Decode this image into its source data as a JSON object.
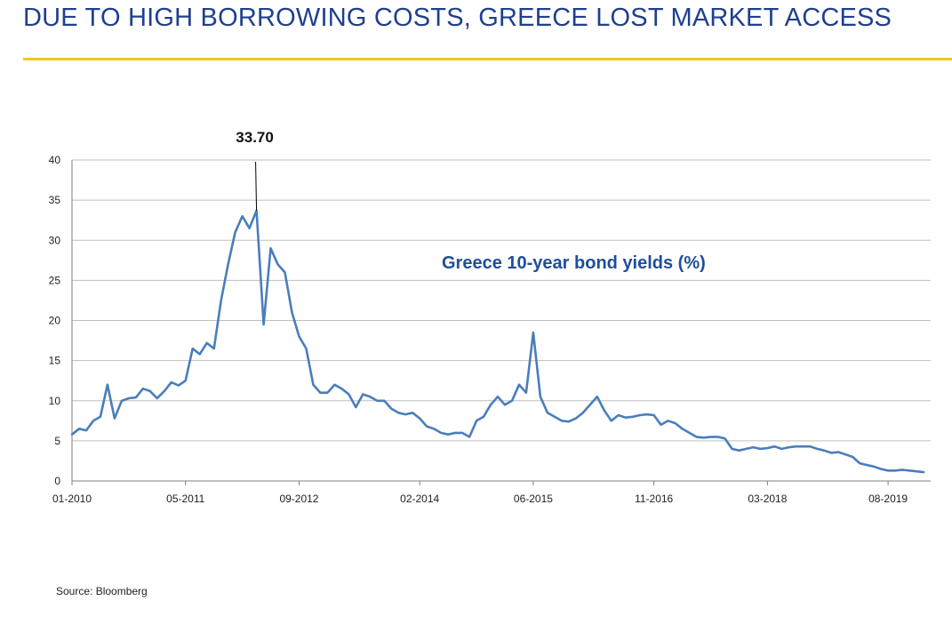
{
  "title": "DUE TO HIGH BORROWING COSTS, GREECE LOST MARKET ACCESS",
  "source": "Source: Bloomberg",
  "colors": {
    "title": "#1F3F8F",
    "rule": "#F2C81E",
    "line": "#4A7EBB",
    "label": "#1F4E9A",
    "grid": "#BFBFBF"
  },
  "chart_data": {
    "type": "line",
    "series_label": "Greece 10-year bond yields (%)",
    "annotation": {
      "text": "33.70",
      "x": "03-2012",
      "y": 33.7
    },
    "ylim": [
      0,
      40
    ],
    "y_ticks": [
      0,
      5,
      10,
      15,
      20,
      25,
      30,
      35,
      40
    ],
    "x_range": [
      "01-2010",
      "02-2020"
    ],
    "x_tick_labels": [
      "01-2010",
      "05-2011",
      "09-2012",
      "02-2014",
      "06-2015",
      "11-2016",
      "03-2018",
      "08-2019"
    ],
    "grid": "horizontal",
    "series": [
      {
        "x": [
          "2010-01",
          "2010-02",
          "2010-03",
          "2010-04",
          "2010-05",
          "2010-06",
          "2010-07",
          "2010-08",
          "2010-09",
          "2010-10",
          "2010-11",
          "2010-12",
          "2011-01",
          "2011-02",
          "2011-03",
          "2011-04",
          "2011-05",
          "2011-06",
          "2011-07",
          "2011-08",
          "2011-09",
          "2011-10",
          "2011-11",
          "2011-12",
          "2012-01",
          "2012-02",
          "2012-03",
          "2012-04",
          "2012-05",
          "2012-06",
          "2012-07",
          "2012-08",
          "2012-09",
          "2012-10",
          "2012-11",
          "2012-12",
          "2013-01",
          "2013-02",
          "2013-03",
          "2013-04",
          "2013-05",
          "2013-06",
          "2013-07",
          "2013-08",
          "2013-09",
          "2013-10",
          "2013-11",
          "2013-12",
          "2014-01",
          "2014-02",
          "2014-03",
          "2014-04",
          "2014-05",
          "2014-06",
          "2014-07",
          "2014-08",
          "2014-09",
          "2014-10",
          "2014-11",
          "2014-12",
          "2015-01",
          "2015-02",
          "2015-03",
          "2015-04",
          "2015-05",
          "2015-06",
          "2015-07",
          "2015-08",
          "2015-09",
          "2015-10",
          "2015-11",
          "2015-12",
          "2016-01",
          "2016-02",
          "2016-03",
          "2016-04",
          "2016-05",
          "2016-06",
          "2016-07",
          "2016-08",
          "2016-09",
          "2016-10",
          "2016-11",
          "2016-12",
          "2017-01",
          "2017-02",
          "2017-03",
          "2017-04",
          "2017-05",
          "2017-06",
          "2017-07",
          "2017-08",
          "2017-09",
          "2017-10",
          "2017-11",
          "2017-12",
          "2018-01",
          "2018-02",
          "2018-03",
          "2018-04",
          "2018-05",
          "2018-06",
          "2018-07",
          "2018-08",
          "2018-09",
          "2018-10",
          "2018-11",
          "2018-12",
          "2019-01",
          "2019-02",
          "2019-03",
          "2019-04",
          "2019-05",
          "2019-06",
          "2019-07",
          "2019-08",
          "2019-09",
          "2019-10",
          "2019-11",
          "2019-12",
          "2020-01"
        ],
        "values": [
          5.8,
          6.5,
          6.3,
          7.5,
          8.0,
          12.0,
          7.8,
          10.0,
          10.3,
          10.4,
          11.5,
          11.2,
          10.3,
          11.2,
          12.3,
          11.9,
          12.5,
          16.5,
          15.8,
          17.2,
          16.5,
          22.5,
          27.0,
          31.0,
          33.0,
          31.5,
          33.7,
          19.5,
          29.0,
          27.0,
          26.0,
          21.0,
          18.0,
          16.5,
          12.0,
          11.0,
          11.0,
          12.0,
          11.5,
          10.8,
          9.2,
          10.8,
          10.5,
          10.0,
          10.0,
          9.0,
          8.5,
          8.3,
          8.5,
          7.8,
          6.8,
          6.5,
          6.0,
          5.8,
          6.0,
          6.0,
          5.5,
          7.5,
          8.0,
          9.5,
          10.5,
          9.5,
          10.0,
          12.0,
          11.0,
          18.5,
          10.5,
          8.5,
          8.0,
          7.5,
          7.4,
          7.8,
          8.5,
          9.5,
          10.5,
          8.8,
          7.5,
          8.2,
          7.9,
          8.0,
          8.2,
          8.3,
          8.2,
          7.0,
          7.5,
          7.2,
          6.5,
          6.0,
          5.5,
          5.4,
          5.5,
          5.5,
          5.3,
          4.0,
          3.8,
          4.0,
          4.2,
          4.0,
          4.1,
          4.3,
          4.0,
          4.2,
          4.3,
          4.3,
          4.3,
          4.0,
          3.8,
          3.5,
          3.6,
          3.3,
          3.0,
          2.2,
          2.0,
          1.8,
          1.5,
          1.3,
          1.3,
          1.4,
          1.3,
          1.2,
          1.1
        ]
      }
    ]
  }
}
